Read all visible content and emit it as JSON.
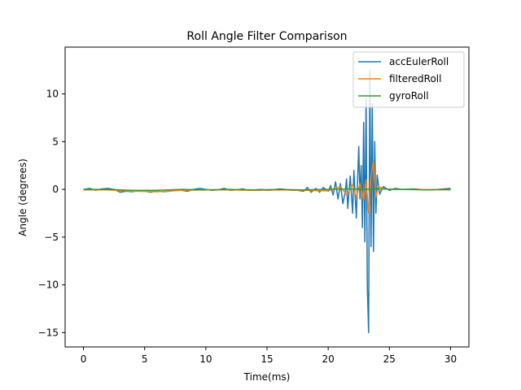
{
  "chart_data": {
    "type": "line",
    "title": "Roll Angle Filter Comparison",
    "xlabel": "Time(ms)",
    "ylabel": "Angle (degrees)",
    "xlim": [
      -1.5,
      31.5
    ],
    "ylim": [
      -16.5,
      14.9
    ],
    "xticks": [
      0,
      5,
      10,
      15,
      20,
      25,
      30
    ],
    "yticks": [
      -15,
      -10,
      -5,
      0,
      5,
      10
    ],
    "grid": false,
    "legend_position": "top-right",
    "series": [
      {
        "name": "accEulerRoll",
        "color": "#1f77b4",
        "points": [
          [
            0,
            0.0
          ],
          [
            0.5,
            0.1
          ],
          [
            1,
            -0.1
          ],
          [
            1.5,
            0.05
          ],
          [
            2,
            0.1
          ],
          [
            2.5,
            0.0
          ],
          [
            3,
            -0.3
          ],
          [
            3.5,
            -0.2
          ],
          [
            4,
            -0.25
          ],
          [
            4.5,
            -0.1
          ],
          [
            5,
            -0.2
          ],
          [
            5.5,
            -0.3
          ],
          [
            6,
            -0.15
          ],
          [
            6.5,
            -0.25
          ],
          [
            7,
            -0.2
          ],
          [
            7.5,
            -0.1
          ],
          [
            8,
            -0.1
          ],
          [
            8.5,
            -0.2
          ],
          [
            9,
            0.0
          ],
          [
            9.5,
            0.1
          ],
          [
            10,
            0.0
          ],
          [
            10.5,
            -0.1
          ],
          [
            11,
            -0.05
          ],
          [
            11.5,
            0.1
          ],
          [
            12,
            -0.1
          ],
          [
            12.5,
            -0.05
          ],
          [
            13,
            0.05
          ],
          [
            13.5,
            -0.1
          ],
          [
            14,
            -0.05
          ],
          [
            14.5,
            0.0
          ],
          [
            15,
            -0.1
          ],
          [
            15.5,
            -0.05
          ],
          [
            16,
            0.05
          ],
          [
            16.5,
            0.0
          ],
          [
            17,
            -0.1
          ],
          [
            17.5,
            -0.1
          ],
          [
            18,
            -0.2
          ],
          [
            18.3,
            0.2
          ],
          [
            18.6,
            -0.3
          ],
          [
            19,
            0.1
          ],
          [
            19.3,
            -0.3
          ],
          [
            19.6,
            0.2
          ],
          [
            20,
            -0.2
          ],
          [
            20.2,
            0.4
          ],
          [
            20.4,
            -0.6
          ],
          [
            20.6,
            0.8
          ],
          [
            20.8,
            -1.0
          ],
          [
            21.0,
            0.6
          ],
          [
            21.2,
            -1.5
          ],
          [
            21.4,
            -0.2
          ],
          [
            21.5,
            1.1
          ],
          [
            21.6,
            -2.0
          ],
          [
            21.8,
            1.4
          ],
          [
            22.0,
            -2.5
          ],
          [
            22.1,
            2.0
          ],
          [
            22.3,
            -3.0
          ],
          [
            22.5,
            4.5
          ],
          [
            22.6,
            -1.0
          ],
          [
            22.7,
            2.5
          ],
          [
            22.8,
            -4.0
          ],
          [
            22.9,
            7.0
          ],
          [
            23.0,
            -5.5
          ],
          [
            23.1,
            9.5
          ],
          [
            23.2,
            -10.0
          ],
          [
            23.3,
            -15.0
          ],
          [
            23.4,
            12.5
          ],
          [
            23.5,
            -6.0
          ],
          [
            23.6,
            9.0
          ],
          [
            23.7,
            -6.5
          ],
          [
            23.8,
            5.0
          ],
          [
            23.9,
            -2.5
          ],
          [
            24.0,
            1.5
          ],
          [
            24.2,
            -0.5
          ],
          [
            24.5,
            0.3
          ],
          [
            25,
            -0.1
          ],
          [
            25.5,
            0.1
          ],
          [
            26,
            0.0
          ],
          [
            27,
            0.05
          ],
          [
            28,
            -0.05
          ],
          [
            29,
            0.0
          ],
          [
            30,
            0.1
          ]
        ]
      },
      {
        "name": "filteredRoll",
        "color": "#ff7f0e",
        "points": [
          [
            0,
            -0.05
          ],
          [
            2,
            -0.05
          ],
          [
            4,
            -0.2
          ],
          [
            6,
            -0.25
          ],
          [
            8,
            -0.1
          ],
          [
            10,
            -0.05
          ],
          [
            12,
            -0.05
          ],
          [
            14,
            -0.1
          ],
          [
            16,
            -0.05
          ],
          [
            18,
            -0.1
          ],
          [
            20,
            -0.15
          ],
          [
            21,
            0.3
          ],
          [
            21.5,
            -0.6
          ],
          [
            22,
            0.5
          ],
          [
            22.3,
            -0.8
          ],
          [
            22.6,
            0.6
          ],
          [
            22.9,
            -1.2
          ],
          [
            23.1,
            1.0
          ],
          [
            23.3,
            -2.5
          ],
          [
            23.5,
            1.5
          ],
          [
            23.7,
            3.0
          ],
          [
            23.9,
            -0.8
          ],
          [
            24.1,
            0.3
          ],
          [
            24.5,
            0.1
          ],
          [
            25,
            0.0
          ],
          [
            27,
            0.0
          ],
          [
            30,
            -0.05
          ]
        ]
      },
      {
        "name": "gyroRoll",
        "color": "#2ca02c",
        "points": [
          [
            0,
            0.0
          ],
          [
            2,
            0.0
          ],
          [
            4,
            -0.1
          ],
          [
            6,
            -0.1
          ],
          [
            8,
            0.0
          ],
          [
            10,
            -0.05
          ],
          [
            12,
            0.0
          ],
          [
            14,
            -0.05
          ],
          [
            16,
            0.0
          ],
          [
            18,
            -0.05
          ],
          [
            20,
            0.0
          ],
          [
            22,
            0.05
          ],
          [
            23,
            0.0
          ],
          [
            24,
            0.05
          ],
          [
            26,
            0.0
          ],
          [
            28,
            -0.05
          ],
          [
            30,
            0.0
          ]
        ]
      }
    ]
  }
}
